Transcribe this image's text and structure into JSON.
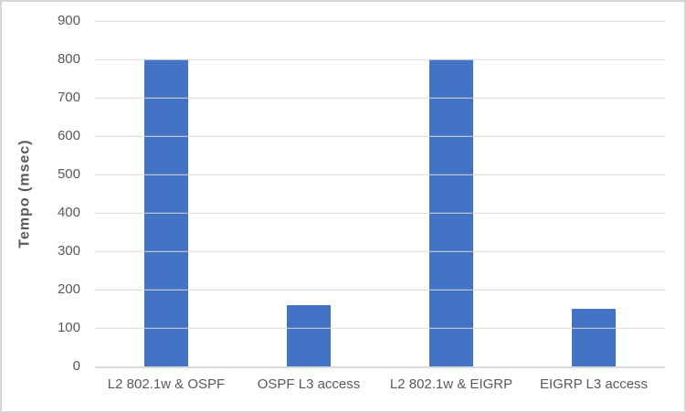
{
  "chart_data": {
    "type": "bar",
    "title": "",
    "categories": [
      "L2 802.1w & OSPF",
      "OSPF L3 access",
      "L2 802.1w & EIGRP",
      "EIGRP L3 access"
    ],
    "values": [
      800,
      160,
      800,
      150
    ],
    "xlabel": "",
    "ylabel": "Tempo (msec)",
    "ylim": [
      0,
      900
    ],
    "yticks": [
      0,
      100,
      200,
      300,
      400,
      500,
      600,
      700,
      800,
      900
    ],
    "grid": true,
    "legend": false,
    "colors": {
      "bar": "#4472C4",
      "gridline": "#D9D9D9",
      "axis_line": "#D9D9D9",
      "text": "#595959",
      "frame_border": "#D6D6D6",
      "background": "#FFFFFF"
    }
  }
}
